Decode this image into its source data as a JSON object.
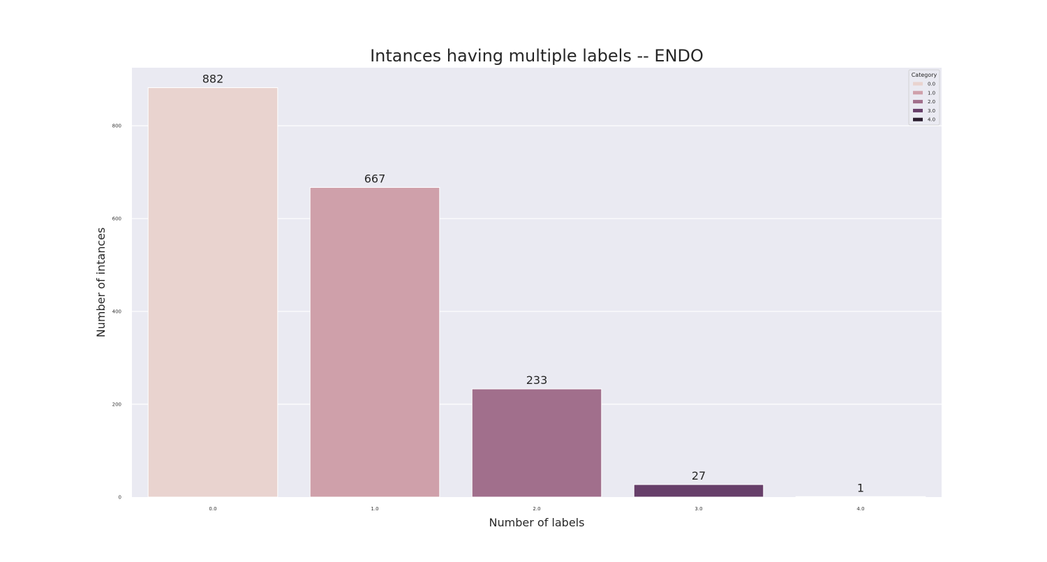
{
  "chart_data": {
    "type": "bar",
    "title": "Intances having multiple labels -- ENDO",
    "xlabel": "Number of labels",
    "ylabel": "Number of intances",
    "categories": [
      "0.0",
      "1.0",
      "2.0",
      "3.0",
      "4.0"
    ],
    "values": [
      882,
      667,
      233,
      27,
      1
    ],
    "bar_labels": [
      "882",
      "667",
      "233",
      "27",
      "1"
    ],
    "colors": [
      "#e9d3cf",
      "#cfa0aa",
      "#a16f8c",
      "#673f6a",
      "#2a1d2f"
    ],
    "yticks": [
      0,
      200,
      400,
      600,
      800
    ],
    "ytick_labels": [
      "0",
      "200",
      "400",
      "600",
      "800"
    ],
    "ylim": [
      0,
      925
    ],
    "grid": true,
    "legend": {
      "title": "Category",
      "position": "top-right",
      "entries": [
        "0.0",
        "1.0",
        "2.0",
        "3.0",
        "4.0"
      ]
    },
    "background_color": "#eaeaf2",
    "grid_color": "#ffffff"
  }
}
